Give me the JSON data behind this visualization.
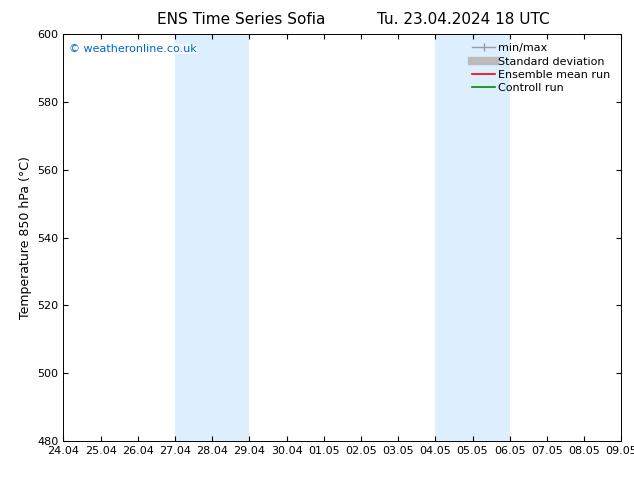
{
  "title_left": "ENS Time Series Sofia",
  "title_right": "Tu. 23.04.2024 18 UTC",
  "ylabel": "Temperature 850 hPa (°C)",
  "ylim": [
    480,
    600
  ],
  "yticks": [
    480,
    500,
    520,
    540,
    560,
    580,
    600
  ],
  "xtick_labels": [
    "24.04",
    "25.04",
    "26.04",
    "27.04",
    "28.04",
    "29.04",
    "30.04",
    "01.05",
    "02.05",
    "03.05",
    "04.05",
    "05.05",
    "06.05",
    "07.05",
    "08.05",
    "09.05"
  ],
  "shade_color": "#ddeeff",
  "background_color": "#ffffff",
  "watermark_text": "© weatheronline.co.uk",
  "watermark_color": "#0066cc",
  "legend_entries": [
    {
      "label": "min/max",
      "color": "#999999",
      "lw": 1.0
    },
    {
      "label": "Standard deviation",
      "color": "#bbbbbb",
      "lw": 6
    },
    {
      "label": "Ensemble mean run",
      "color": "#ff0000",
      "lw": 1.2
    },
    {
      "label": "Controll run",
      "color": "#008800",
      "lw": 1.2
    }
  ],
  "tick_fontsize": 8,
  "label_fontsize": 9,
  "title_fontsize": 11,
  "legend_fontsize": 8,
  "watermark_fontsize": 8
}
